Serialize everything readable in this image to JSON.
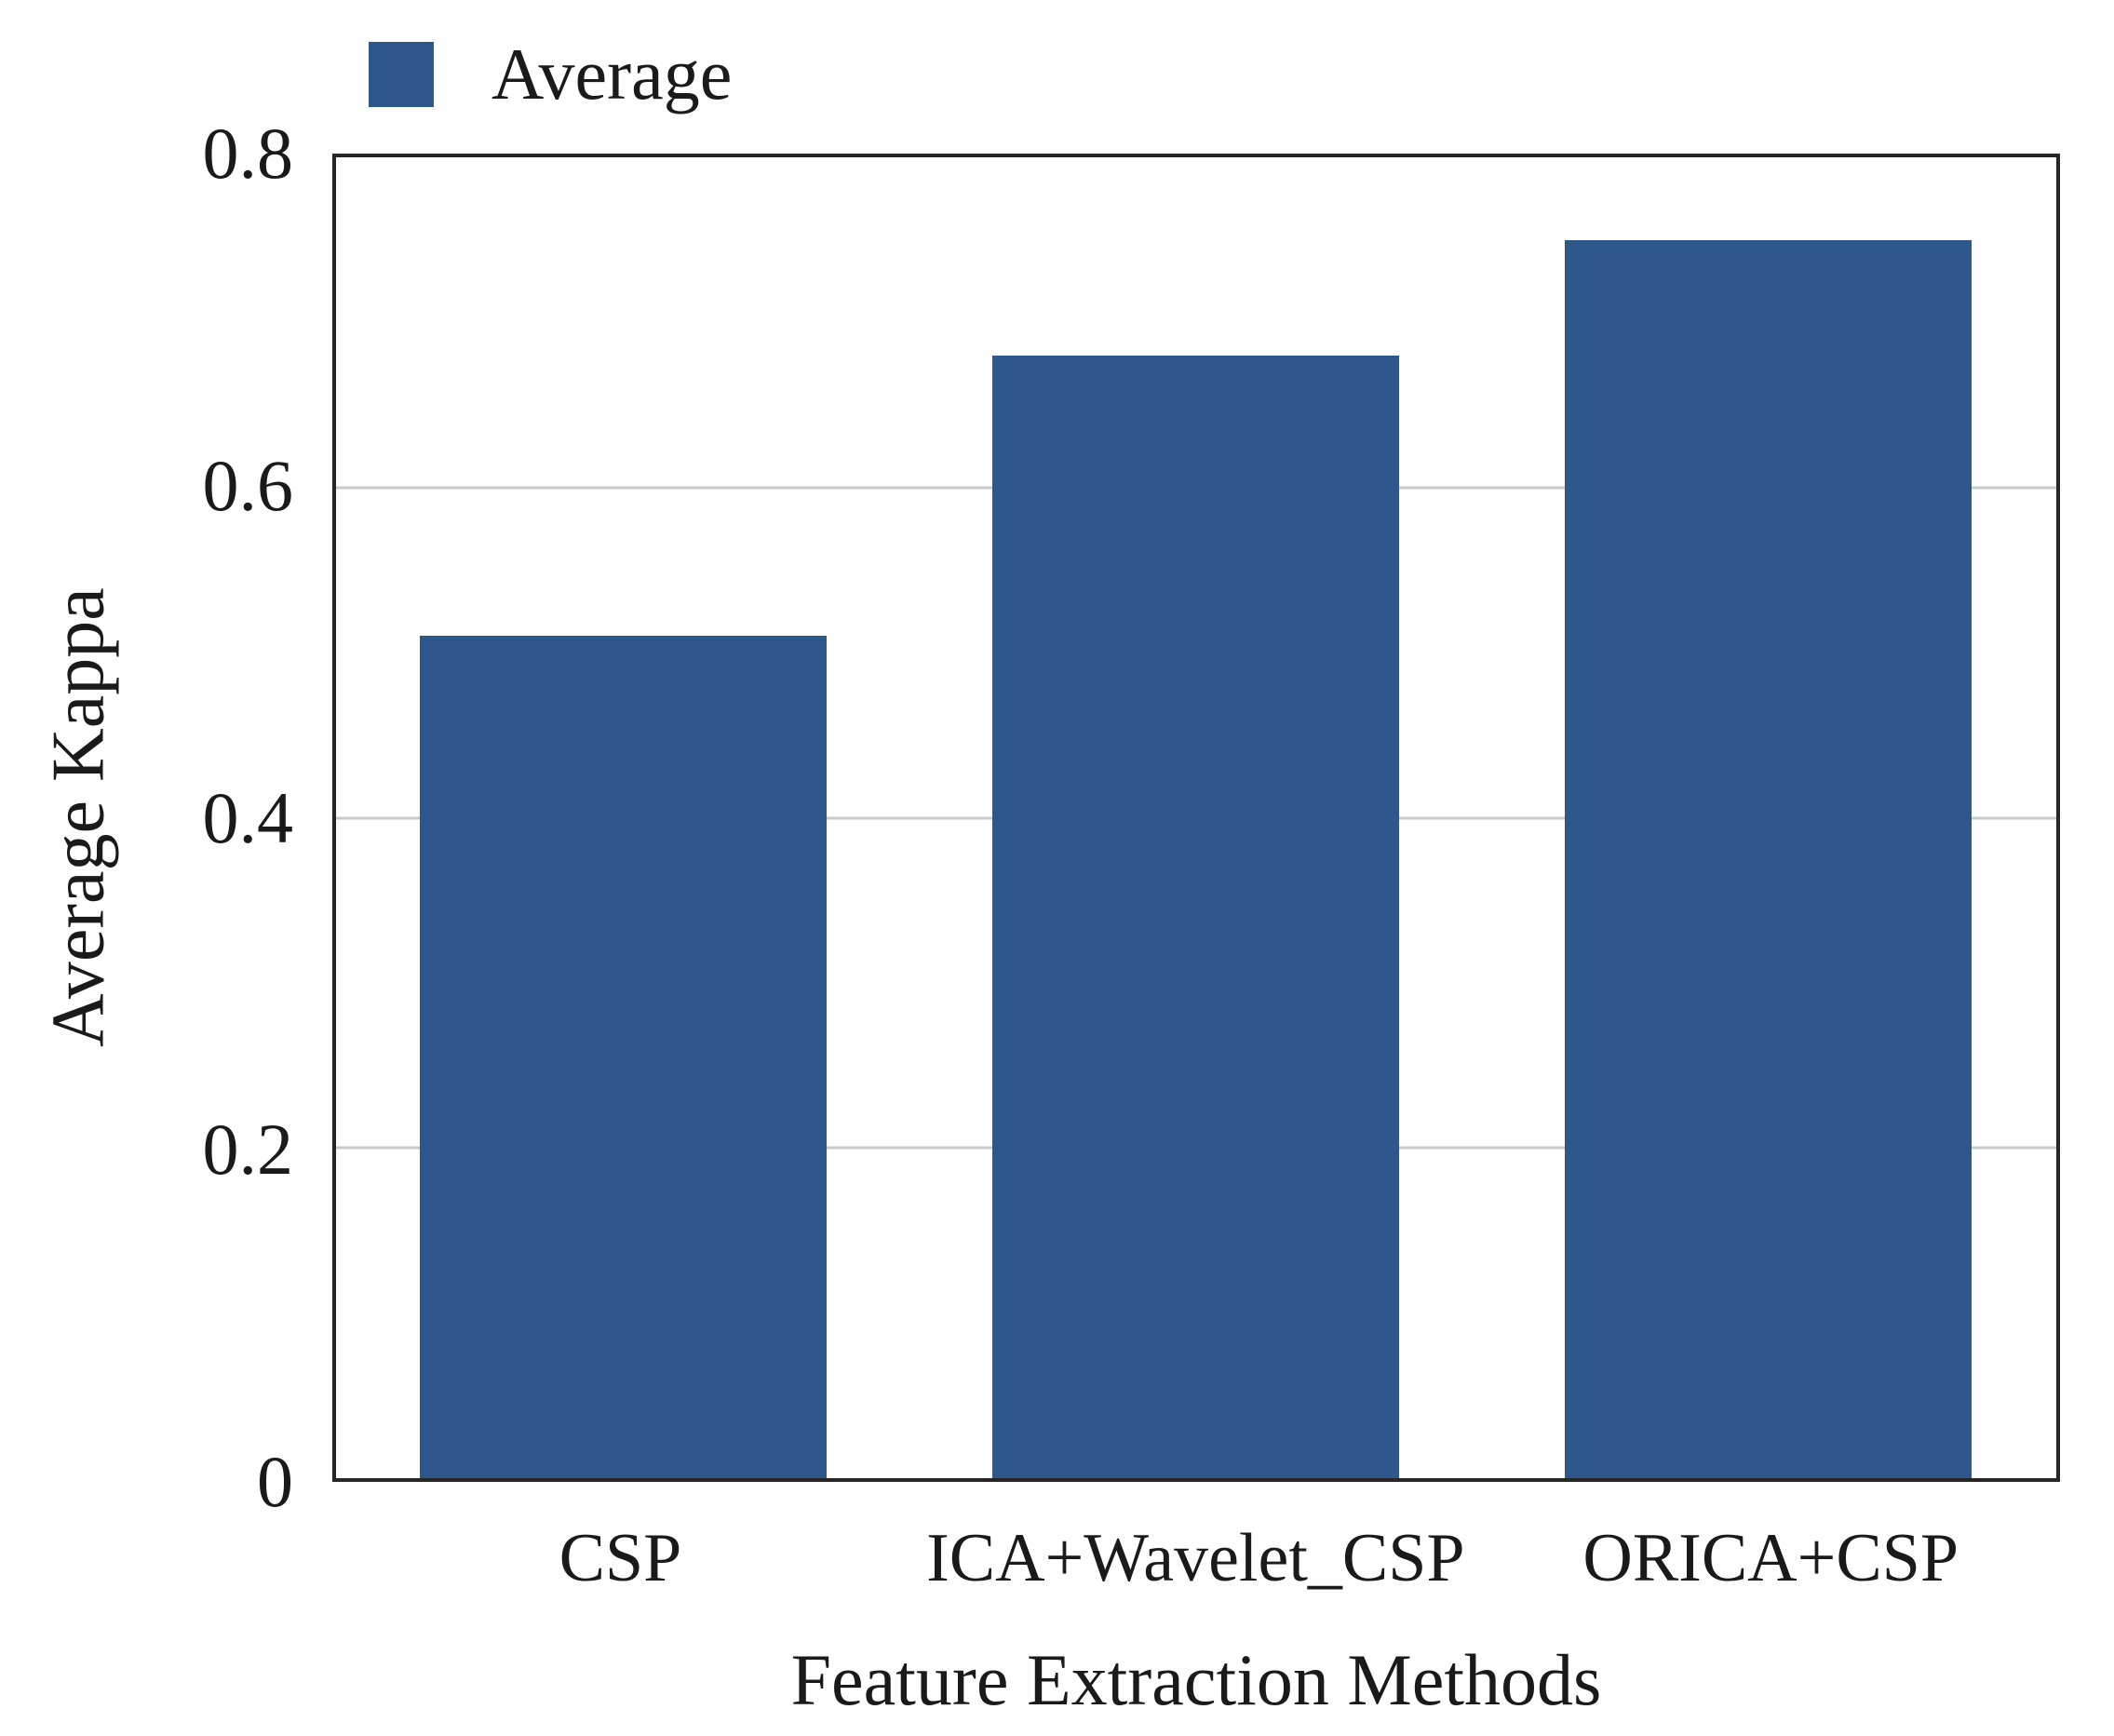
{
  "chart_data": {
    "type": "bar",
    "title": "",
    "legend": {
      "label": "Average",
      "position": "top-left"
    },
    "categories": [
      "CSP",
      "ICA+Wavelet_CSP",
      "ORICA+CSP"
    ],
    "values": [
      0.51,
      0.68,
      0.75
    ],
    "series": [
      {
        "name": "Average",
        "values": [
          0.51,
          0.68,
          0.75
        ]
      }
    ],
    "xlabel": "Feature Extraction Methods",
    "ylabel": "Average Kappa",
    "ylim": [
      0,
      0.8
    ],
    "yticks": [
      0,
      0.2,
      0.4,
      0.6,
      0.8
    ],
    "ytick_labels": [
      "0",
      "0.2",
      "0.4",
      "0.6",
      "0.8"
    ],
    "grid": true,
    "gridlines_at": [
      0.2,
      0.4,
      0.6
    ],
    "colors": {
      "bar": "#2E578C",
      "gridline": "#C9C9C9",
      "axis_frame": "#262626",
      "text": "#1A1A1A",
      "background": "#FFFFFF"
    }
  }
}
